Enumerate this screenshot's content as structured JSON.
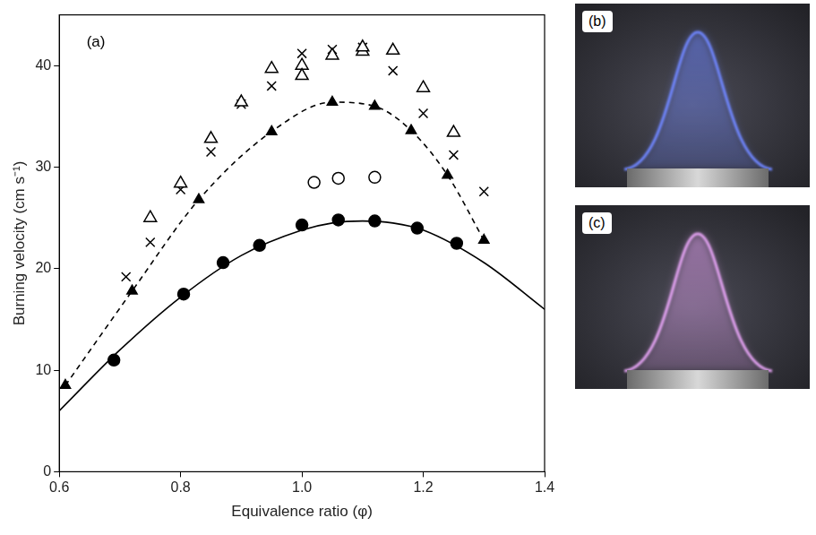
{
  "chart_data": {
    "type": "scatter",
    "xlabel": "Equivalence ratio (φ)",
    "ylabel": "Burning velocity (cm s⁻¹)",
    "xlim": [
      0.6,
      1.4
    ],
    "xticks": [
      0.6,
      0.8,
      {
        "value": 1,
        "label": "1.0"
      },
      1.2,
      1.4
    ],
    "ylim": [
      0,
      45
    ],
    "yticks": [
      0,
      10,
      20,
      30,
      40
    ],
    "grid": false,
    "annotations": [
      {
        "text": "(a)",
        "x": 0.645,
        "y": 42.3
      }
    ],
    "series": [
      {
        "type": "line",
        "line_style": "solid",
        "color": "#000000",
        "x": [
          0.6,
          0.7,
          0.8,
          0.9,
          1.0,
          1.05,
          1.1,
          1.15,
          1.2,
          1.3,
          1.4
        ],
        "values": [
          6.0,
          12.0,
          17.2,
          21.3,
          23.8,
          24.5,
          24.7,
          24.5,
          23.8,
          20.6,
          16.0
        ]
      },
      {
        "type": "scatter",
        "marker": "circle",
        "color": "#000000",
        "x": [
          0.69,
          0.805,
          0.87,
          0.93,
          1.0,
          1.06,
          1.12,
          1.19,
          1.255
        ],
        "values": [
          11.0,
          17.5,
          20.6,
          22.3,
          24.3,
          24.8,
          24.7,
          24.0,
          22.5
        ]
      },
      {
        "type": "line",
        "marker": "triangle",
        "line_style": "dashed",
        "color": "#000000",
        "x": [
          0.61,
          0.72,
          0.83,
          0.95,
          1.05,
          1.12,
          1.18,
          1.24,
          1.3
        ],
        "values": [
          8.5,
          17.8,
          26.8,
          33.5,
          36.4,
          36.0,
          33.6,
          29.2,
          22.8
        ]
      },
      {
        "type": "scatter",
        "marker": "circle-open",
        "color": "#000000",
        "x": [
          1.02,
          1.06,
          1.12
        ],
        "values": [
          28.5,
          28.9,
          29.0
        ]
      },
      {
        "type": "scatter",
        "marker": "triangle-open",
        "color": "#000000",
        "x": [
          0.75,
          0.8,
          0.85,
          0.9,
          0.95,
          1.0,
          1.0,
          1.05,
          1.1,
          1.1,
          1.15,
          1.2,
          1.25
        ],
        "values": [
          25.0,
          28.4,
          32.8,
          36.4,
          39.7,
          40.0,
          39.0,
          41.0,
          41.4,
          41.8,
          41.5,
          37.8,
          33.4
        ]
      },
      {
        "type": "scatter",
        "marker": "cross",
        "color": "#000000",
        "x": [
          0.71,
          0.75,
          0.8,
          0.85,
          0.9,
          0.95,
          1.0,
          1.05,
          1.1,
          1.15,
          1.2,
          1.25,
          1.3
        ],
        "values": [
          19.2,
          22.6,
          27.8,
          31.5,
          36.2,
          38.0,
          41.2,
          41.6,
          41.8,
          39.5,
          35.3,
          31.2,
          27.6
        ]
      }
    ]
  },
  "images": [
    {
      "label": "(b)",
      "color": "#6f86ff"
    },
    {
      "label": "(c)",
      "color": "#e3a2f2"
    }
  ]
}
